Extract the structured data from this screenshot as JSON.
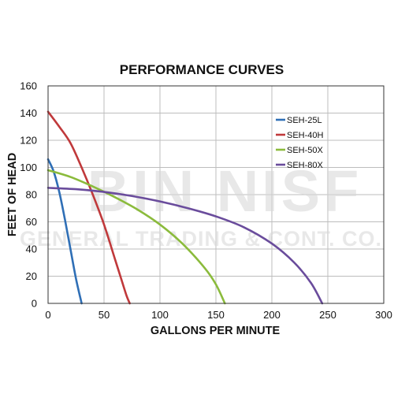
{
  "chart_data": {
    "type": "line",
    "title": "PERFORMANCE CURVES",
    "xlabel": "GALLONS PER MINUTE",
    "ylabel": "FEET OF HEAD",
    "xlim": [
      0,
      300
    ],
    "ylim": [
      0,
      160
    ],
    "xticks": [
      0,
      50,
      100,
      150,
      200,
      250,
      300
    ],
    "yticks": [
      0,
      20,
      40,
      60,
      80,
      100,
      120,
      140,
      160
    ],
    "grid": true,
    "legend_position": "top-right",
    "series": [
      {
        "name": "SEH-25L",
        "color": "#2f6fb6",
        "x": [
          0,
          5,
          10,
          15,
          20,
          25,
          30
        ],
        "y": [
          106,
          97,
          82,
          62,
          40,
          18,
          0
        ]
      },
      {
        "name": "SEH-40H",
        "color": "#c0393b",
        "x": [
          0,
          10,
          20,
          30,
          40,
          50,
          60,
          65,
          70,
          73
        ],
        "y": [
          141,
          130,
          118,
          100,
          80,
          58,
          32,
          19,
          6,
          0
        ]
      },
      {
        "name": "SEH-50X",
        "color": "#8bbb3c",
        "x": [
          0,
          20,
          40,
          60,
          80,
          100,
          120,
          140,
          150,
          158
        ],
        "y": [
          98,
          93,
          86,
          78,
          69,
          58,
          44,
          26,
          14,
          0
        ]
      },
      {
        "name": "SEH-80X",
        "color": "#6a4c9c",
        "x": [
          0,
          25,
          50,
          75,
          100,
          125,
          150,
          175,
          200,
          220,
          235,
          245
        ],
        "y": [
          85,
          84,
          82,
          79,
          75,
          70,
          64,
          56,
          44,
          30,
          15,
          0
        ]
      }
    ]
  },
  "watermark": {
    "line1": "BIN NISF",
    "line2": "GENERAL TRADING & CONT. CO."
  }
}
